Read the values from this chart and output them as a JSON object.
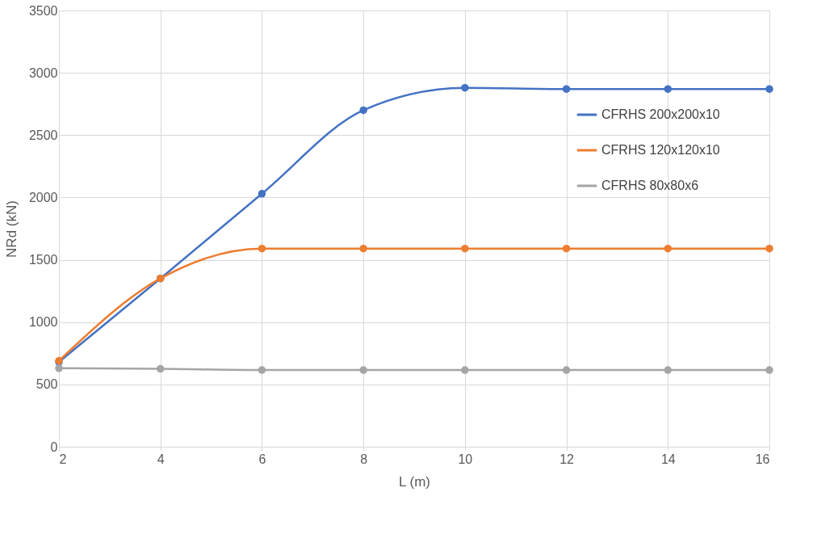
{
  "chart_data": {
    "type": "line",
    "xlabel": "L (m)",
    "ylabel": "NRd (kN)",
    "x": [
      2,
      4,
      6,
      8,
      10,
      12,
      14,
      16
    ],
    "series": [
      {
        "name": "CFRHS 200x200x10",
        "color": "#4472c4",
        "values": [
          680,
          1350,
          2030,
          2700,
          2880,
          2870,
          2870,
          2870
        ]
      },
      {
        "name": "CFRHS 120x120x10",
        "color": "#ed7d31",
        "values": [
          690,
          1350,
          1590,
          1590,
          1590,
          1590,
          1590,
          1590
        ]
      },
      {
        "name": "CFRHS 80x80x6",
        "color": "#a5a5a5",
        "values": [
          630,
          625,
          615,
          615,
          615,
          615,
          615,
          615
        ]
      }
    ],
    "xlim": [
      2,
      16
    ],
    "xticks": [
      2,
      4,
      6,
      8,
      10,
      12,
      14,
      16
    ],
    "ylim": [
      0,
      3500
    ],
    "yticks": [
      0,
      500,
      1000,
      1500,
      2000,
      2500,
      3000,
      3500
    ],
    "grid": true,
    "legend": "top right",
    "marker": "circle",
    "line_style": "solid"
  }
}
